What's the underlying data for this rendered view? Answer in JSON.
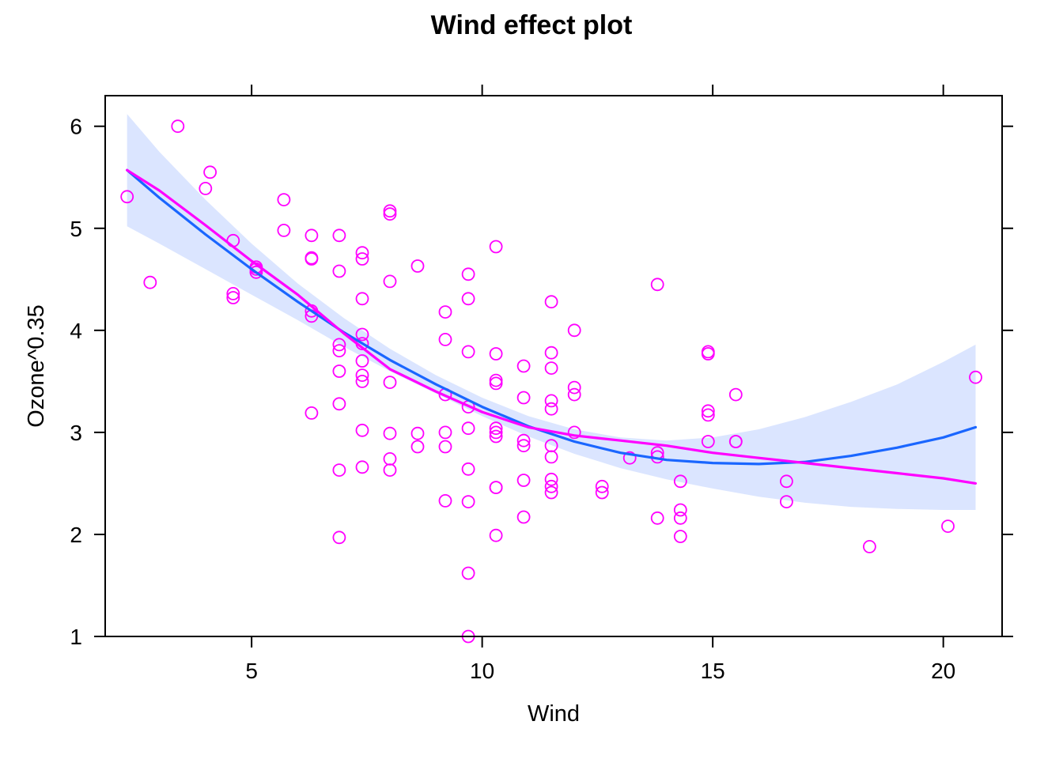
{
  "chart_data": {
    "type": "scatter",
    "title": "Wind effect plot",
    "xlabel": "Wind",
    "ylabel": "Ozone^0.35",
    "xlim": [
      1.825,
      21.275
    ],
    "ylim": [
      1.0,
      6.3
    ],
    "x_ticks": [
      5,
      10,
      15,
      20
    ],
    "y_ticks": [
      1,
      2,
      3,
      4,
      5,
      6
    ],
    "x_tick_labels": [
      "5",
      "10",
      "15",
      "20"
    ],
    "y_tick_labels": [
      "1",
      "2",
      "3",
      "4",
      "5",
      "6"
    ],
    "grid": false,
    "legend": "none",
    "colors": {
      "points": "#ff00ff",
      "fit_line": "#1a66ff",
      "band": "#dbe5ff",
      "smooth_line": "#ff00ff"
    },
    "points": [
      [
        2.3,
        5.31
      ],
      [
        2.8,
        4.47
      ],
      [
        3.4,
        6.0
      ],
      [
        4.0,
        5.39
      ],
      [
        4.1,
        5.55
      ],
      [
        4.6,
        4.88
      ],
      [
        4.6,
        4.36
      ],
      [
        4.6,
        4.32
      ],
      [
        5.1,
        4.62
      ],
      [
        5.1,
        4.6
      ],
      [
        5.1,
        4.57
      ],
      [
        5.7,
        5.28
      ],
      [
        5.7,
        4.98
      ],
      [
        6.3,
        4.93
      ],
      [
        6.3,
        4.71
      ],
      [
        6.3,
        4.7
      ],
      [
        6.3,
        4.19
      ],
      [
        6.3,
        4.14
      ],
      [
        6.3,
        3.19
      ],
      [
        6.9,
        4.93
      ],
      [
        6.9,
        4.58
      ],
      [
        6.9,
        3.86
      ],
      [
        6.9,
        3.8
      ],
      [
        6.9,
        3.6
      ],
      [
        6.9,
        3.28
      ],
      [
        6.9,
        2.63
      ],
      [
        6.9,
        1.97
      ],
      [
        7.4,
        4.76
      ],
      [
        7.4,
        4.7
      ],
      [
        7.4,
        4.31
      ],
      [
        7.4,
        3.96
      ],
      [
        7.4,
        3.87
      ],
      [
        7.4,
        3.7
      ],
      [
        7.4,
        3.56
      ],
      [
        7.4,
        3.5
      ],
      [
        7.4,
        3.02
      ],
      [
        7.4,
        2.66
      ],
      [
        8.0,
        5.17
      ],
      [
        8.0,
        5.14
      ],
      [
        8.0,
        4.48
      ],
      [
        8.0,
        3.49
      ],
      [
        8.0,
        2.99
      ],
      [
        8.0,
        2.74
      ],
      [
        8.0,
        2.63
      ],
      [
        8.6,
        4.63
      ],
      [
        8.6,
        2.99
      ],
      [
        8.6,
        2.86
      ],
      [
        9.2,
        4.18
      ],
      [
        9.2,
        3.91
      ],
      [
        9.2,
        3.37
      ],
      [
        9.2,
        3.0
      ],
      [
        9.2,
        2.86
      ],
      [
        9.2,
        2.33
      ],
      [
        9.7,
        4.55
      ],
      [
        9.7,
        4.31
      ],
      [
        9.7,
        3.79
      ],
      [
        9.7,
        3.25
      ],
      [
        9.7,
        3.04
      ],
      [
        9.7,
        2.64
      ],
      [
        9.7,
        2.32
      ],
      [
        9.7,
        1.62
      ],
      [
        9.7,
        1.0
      ],
      [
        10.3,
        4.82
      ],
      [
        10.3,
        3.77
      ],
      [
        10.3,
        3.51
      ],
      [
        10.3,
        3.48
      ],
      [
        10.3,
        3.04
      ],
      [
        10.3,
        3.0
      ],
      [
        10.3,
        2.96
      ],
      [
        10.3,
        2.46
      ],
      [
        10.3,
        2.46
      ],
      [
        10.3,
        1.99
      ],
      [
        10.9,
        3.65
      ],
      [
        10.9,
        3.34
      ],
      [
        10.9,
        2.92
      ],
      [
        10.9,
        2.87
      ],
      [
        10.9,
        2.53
      ],
      [
        10.9,
        2.17
      ],
      [
        11.5,
        4.28
      ],
      [
        11.5,
        3.78
      ],
      [
        11.5,
        3.63
      ],
      [
        11.5,
        3.31
      ],
      [
        11.5,
        3.23
      ],
      [
        11.5,
        2.87
      ],
      [
        11.5,
        2.76
      ],
      [
        11.5,
        2.54
      ],
      [
        11.5,
        2.47
      ],
      [
        11.5,
        2.41
      ],
      [
        12.0,
        4.0
      ],
      [
        12.0,
        3.44
      ],
      [
        12.0,
        3.37
      ],
      [
        12.0,
        3.0
      ],
      [
        12.6,
        2.47
      ],
      [
        12.6,
        2.41
      ],
      [
        13.2,
        2.75
      ],
      [
        13.8,
        4.45
      ],
      [
        13.8,
        2.8
      ],
      [
        13.8,
        2.76
      ],
      [
        13.8,
        2.16
      ],
      [
        14.3,
        2.52
      ],
      [
        14.3,
        2.24
      ],
      [
        14.3,
        2.16
      ],
      [
        14.3,
        1.98
      ],
      [
        14.9,
        3.79
      ],
      [
        14.9,
        3.77
      ],
      [
        14.9,
        3.21
      ],
      [
        14.9,
        3.17
      ],
      [
        14.9,
        2.91
      ],
      [
        15.5,
        3.37
      ],
      [
        15.5,
        2.91
      ],
      [
        15.5,
        2.91
      ],
      [
        16.6,
        2.52
      ],
      [
        16.6,
        2.32
      ],
      [
        18.4,
        1.88
      ],
      [
        20.1,
        2.08
      ],
      [
        20.7,
        3.54
      ]
    ],
    "fit_line": [
      [
        2.3,
        5.57
      ],
      [
        3.0,
        5.3
      ],
      [
        4.0,
        4.94
      ],
      [
        5.0,
        4.6
      ],
      [
        6.0,
        4.28
      ],
      [
        7.0,
        3.98
      ],
      [
        8.0,
        3.71
      ],
      [
        9.0,
        3.47
      ],
      [
        10.0,
        3.25
      ],
      [
        11.0,
        3.06
      ],
      [
        12.0,
        2.91
      ],
      [
        13.0,
        2.8
      ],
      [
        14.0,
        2.73
      ],
      [
        15.0,
        2.7
      ],
      [
        16.0,
        2.69
      ],
      [
        17.0,
        2.71
      ],
      [
        18.0,
        2.77
      ],
      [
        19.0,
        2.85
      ],
      [
        20.0,
        2.95
      ],
      [
        20.7,
        3.05
      ]
    ],
    "band_upper": [
      [
        2.3,
        6.12
      ],
      [
        3.0,
        5.75
      ],
      [
        4.0,
        5.28
      ],
      [
        5.0,
        4.85
      ],
      [
        6.0,
        4.46
      ],
      [
        7.0,
        4.12
      ],
      [
        8.0,
        3.82
      ],
      [
        9.0,
        3.56
      ],
      [
        10.0,
        3.34
      ],
      [
        11.0,
        3.16
      ],
      [
        12.0,
        3.03
      ],
      [
        13.0,
        2.95
      ],
      [
        14.0,
        2.92
      ],
      [
        15.0,
        2.95
      ],
      [
        16.0,
        3.03
      ],
      [
        17.0,
        3.15
      ],
      [
        18.0,
        3.3
      ],
      [
        19.0,
        3.47
      ],
      [
        20.0,
        3.69
      ],
      [
        20.7,
        3.86
      ]
    ],
    "band_lower": [
      [
        2.3,
        5.02
      ],
      [
        3.0,
        4.85
      ],
      [
        4.0,
        4.6
      ],
      [
        5.0,
        4.35
      ],
      [
        6.0,
        4.1
      ],
      [
        7.0,
        3.84
      ],
      [
        8.0,
        3.6
      ],
      [
        9.0,
        3.38
      ],
      [
        10.0,
        3.16
      ],
      [
        11.0,
        2.96
      ],
      [
        12.0,
        2.79
      ],
      [
        13.0,
        2.65
      ],
      [
        14.0,
        2.54
      ],
      [
        15.0,
        2.45
      ],
      [
        16.0,
        2.37
      ],
      [
        17.0,
        2.31
      ],
      [
        18.0,
        2.27
      ],
      [
        19.0,
        2.25
      ],
      [
        20.0,
        2.24
      ],
      [
        20.7,
        2.24
      ]
    ],
    "smooth_line": [
      [
        2.3,
        5.57
      ],
      [
        3.0,
        5.37
      ],
      [
        4.0,
        5.03
      ],
      [
        5.0,
        4.68
      ],
      [
        6.0,
        4.35
      ],
      [
        7.0,
        3.97
      ],
      [
        8.0,
        3.62
      ],
      [
        9.0,
        3.4
      ],
      [
        10.0,
        3.2
      ],
      [
        11.0,
        3.05
      ],
      [
        12.0,
        2.97
      ],
      [
        13.0,
        2.92
      ],
      [
        14.0,
        2.87
      ],
      [
        15.0,
        2.8
      ],
      [
        16.0,
        2.75
      ],
      [
        17.0,
        2.7
      ],
      [
        18.0,
        2.65
      ],
      [
        19.0,
        2.6
      ],
      [
        20.0,
        2.55
      ],
      [
        20.7,
        2.5
      ]
    ]
  }
}
